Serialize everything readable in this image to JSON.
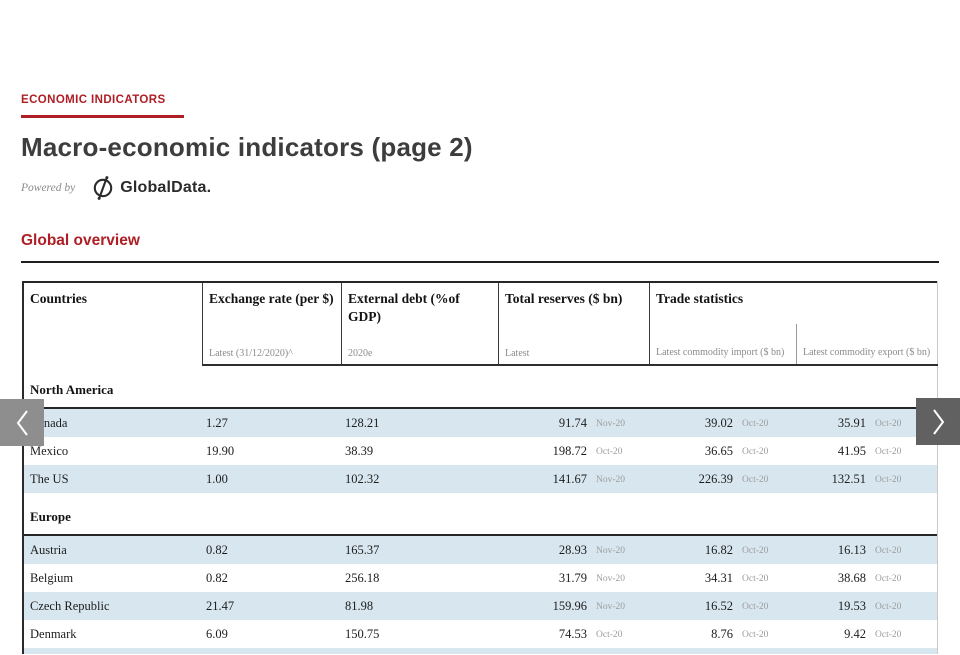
{
  "header": {
    "eyebrow": "ECONOMIC INDICATORS",
    "title": "Macro-economic indicators (page 2)",
    "powered_by": "Powered by",
    "brand": "GlobalData."
  },
  "section": {
    "title": "Global overview"
  },
  "nav": {
    "prev_icon": "chevron-left",
    "next_icon": "chevron-right"
  },
  "colors": {
    "accent_red": "#AE1E24",
    "row_alt_blue": "#D8E6EF",
    "title_gray": "#3D3D3D",
    "muted_gray": "#8B8B8B",
    "prev_button_gray": "#8E8E8E",
    "next_button_gray": "#616161"
  },
  "table": {
    "columns": [
      {
        "label": "Countries",
        "sublabel": ""
      },
      {
        "label": "Exchange rate (per $)",
        "sublabel": "Latest (31/12/2020)^"
      },
      {
        "label": "External debt (%of GDP)",
        "sublabel": "2020e"
      },
      {
        "label": "Total reserves ($ bn)",
        "sublabel": "Latest"
      },
      {
        "label": "Trade statistics",
        "subcolumns": [
          "Latest commodity import ($ bn)",
          "Latest commodity export ($ bn)"
        ]
      }
    ],
    "groups": [
      {
        "name": "North America",
        "rows": [
          {
            "country": "Canada",
            "exchange_rate": "1.27",
            "external_debt": "128.21",
            "reserves": "91.74",
            "reserves_date": "Nov-20",
            "imports": "39.02",
            "imports_date": "Oct-20",
            "exports": "35.91",
            "exports_date": "Oct-20"
          },
          {
            "country": "Mexico",
            "exchange_rate": "19.90",
            "external_debt": "38.39",
            "reserves": "198.72",
            "reserves_date": "Oct-20",
            "imports": "36.65",
            "imports_date": "Oct-20",
            "exports": "41.95",
            "exports_date": "Oct-20"
          },
          {
            "country": "The US",
            "exchange_rate": "1.00",
            "external_debt": "102.32",
            "reserves": "141.67",
            "reserves_date": "Nov-20",
            "imports": "226.39",
            "imports_date": "Oct-20",
            "exports": "132.51",
            "exports_date": "Oct-20"
          }
        ]
      },
      {
        "name": "Europe",
        "rows": [
          {
            "country": "Austria",
            "exchange_rate": "0.82",
            "external_debt": "165.37",
            "reserves": "28.93",
            "reserves_date": "Nov-20",
            "imports": "16.82",
            "imports_date": "Oct-20",
            "exports": "16.13",
            "exports_date": "Oct-20"
          },
          {
            "country": "Belgium",
            "exchange_rate": "0.82",
            "external_debt": "256.18",
            "reserves": "31.79",
            "reserves_date": "Nov-20",
            "imports": "34.31",
            "imports_date": "Oct-20",
            "exports": "38.68",
            "exports_date": "Oct-20"
          },
          {
            "country": "Czech Republic",
            "exchange_rate": "21.47",
            "external_debt": "81.98",
            "reserves": "159.96",
            "reserves_date": "Nov-20",
            "imports": "16.52",
            "imports_date": "Oct-20",
            "exports": "19.53",
            "exports_date": "Oct-20"
          },
          {
            "country": "Denmark",
            "exchange_rate": "6.09",
            "external_debt": "150.75",
            "reserves": "74.53",
            "reserves_date": "Oct-20",
            "imports": "8.76",
            "imports_date": "Oct-20",
            "exports": "9.42",
            "exports_date": "Oct-20"
          }
        ]
      }
    ]
  }
}
